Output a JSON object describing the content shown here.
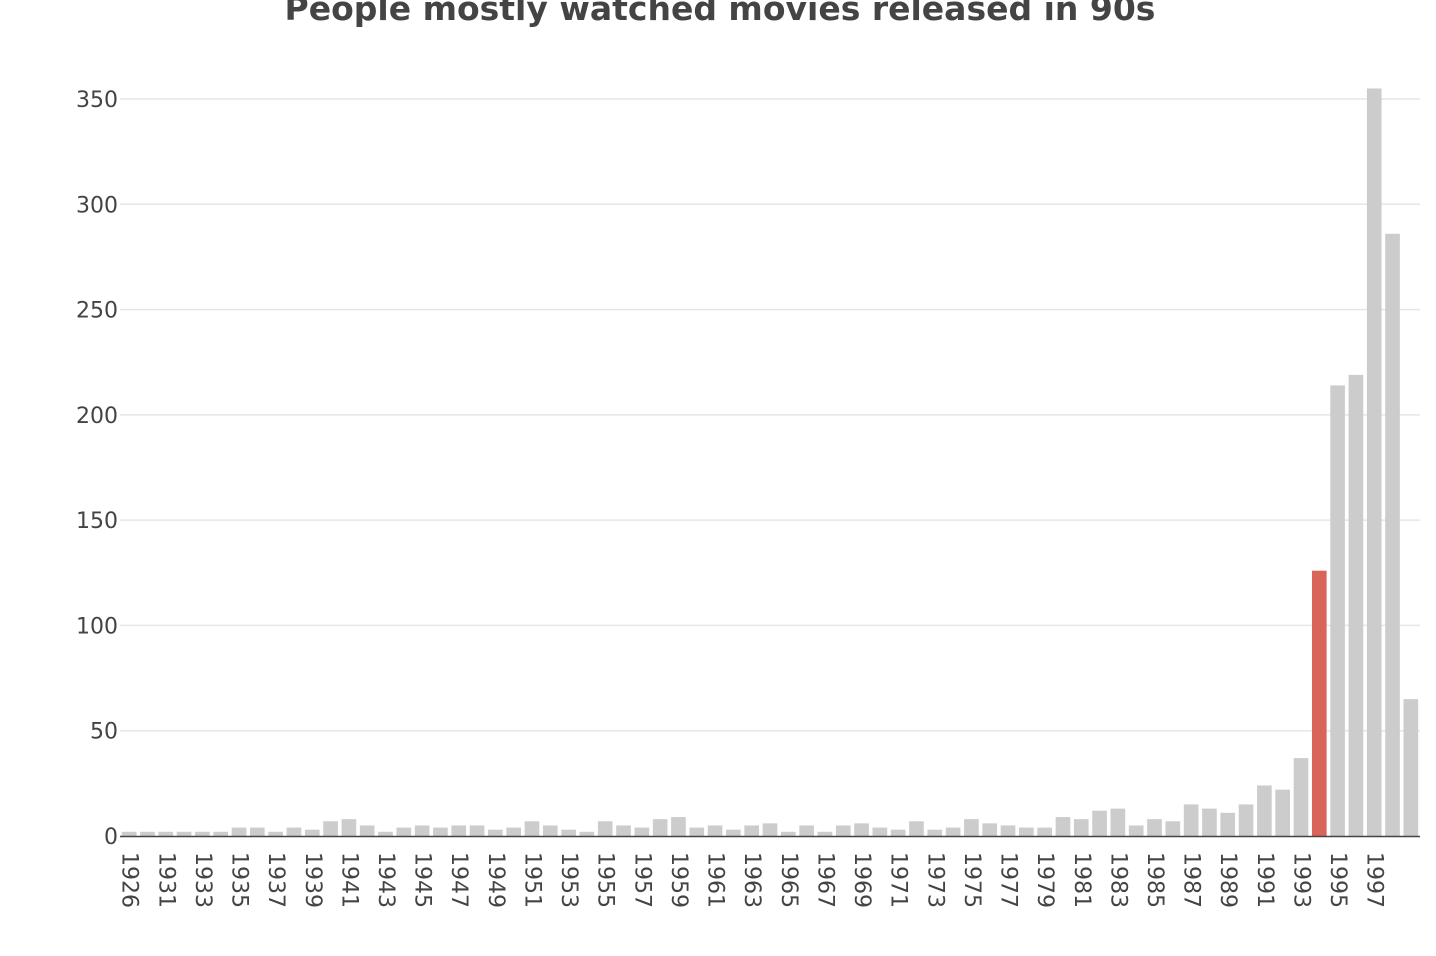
{
  "chart_data": {
    "type": "bar",
    "title": "People mostly watched movies released in 90s",
    "xlabel": "",
    "ylabel": "",
    "ylim": [
      0,
      370
    ],
    "yticks": [
      0,
      50,
      100,
      150,
      200,
      250,
      300,
      350
    ],
    "grid": true,
    "legend": "none",
    "colors": {
      "bar": "#cccccc",
      "highlight": "#d9645a",
      "grid": "#e6e6e6",
      "axis": "#444444",
      "text": "#444444"
    },
    "highlight_category": "1994",
    "categories": [
      "1926",
      "1930",
      "1931",
      "1932",
      "1933",
      "1934",
      "1935",
      "1936",
      "1937",
      "1938",
      "1939",
      "1940",
      "1941",
      "1942",
      "1943",
      "1944",
      "1945",
      "1946",
      "1947",
      "1948",
      "1949",
      "1950",
      "1951",
      "1952",
      "1953",
      "1954",
      "1955",
      "1956",
      "1957",
      "1958",
      "1959",
      "1960",
      "1961",
      "1962",
      "1963",
      "1964",
      "1965",
      "1966",
      "1967",
      "1968",
      "1969",
      "1970",
      "1971",
      "1972",
      "1973",
      "1974",
      "1975",
      "1976",
      "1977",
      "1978",
      "1979",
      "1980",
      "1981",
      "1982",
      "1983",
      "1984",
      "1985",
      "1986",
      "1987",
      "1988",
      "1989",
      "1990",
      "1991",
      "1992",
      "1993",
      "1994",
      "1995",
      "1996",
      "1997",
      "1998",
      "1999"
    ],
    "tick_labels": [
      "1926",
      "1931",
      "1933",
      "1935",
      "1937",
      "1939",
      "1941",
      "1943",
      "1945",
      "1947",
      "1949",
      "1951",
      "1953",
      "1955",
      "1957",
      "1959",
      "1961",
      "1963",
      "1965",
      "1967",
      "1969",
      "1971",
      "1973",
      "1975",
      "1977",
      "1979",
      "1981",
      "1983",
      "1985",
      "1987",
      "1989",
      "1991",
      "1993",
      "1995",
      "1997"
    ],
    "values": [
      2,
      2,
      2,
      2,
      2,
      2,
      4,
      4,
      2,
      4,
      3,
      7,
      8,
      5,
      2,
      4,
      5,
      4,
      5,
      5,
      3,
      4,
      7,
      5,
      3,
      2,
      7,
      5,
      4,
      8,
      9,
      4,
      5,
      3,
      5,
      6,
      2,
      5,
      2,
      5,
      6,
      4,
      3,
      7,
      3,
      4,
      8,
      6,
      5,
      4,
      4,
      9,
      8,
      12,
      13,
      5,
      8,
      7,
      15,
      13,
      11,
      15,
      24,
      22,
      37,
      126,
      214,
      219,
      355,
      286,
      65
    ]
  }
}
